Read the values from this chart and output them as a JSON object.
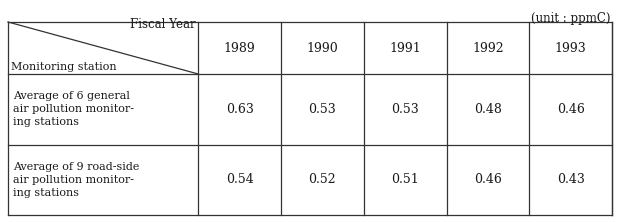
{
  "unit_label": "(unit : ppmC)",
  "header_top_left_1": "Fiscal Year",
  "header_top_left_2": "Monitoring station",
  "years": [
    "1989",
    "1990",
    "1991",
    "1992",
    "1993"
  ],
  "rows": [
    {
      "label": "Average of 6 general\nair pollution monitor-\ning stations",
      "values": [
        "0.63",
        "0.53",
        "0.53",
        "0.48",
        "0.46"
      ]
    },
    {
      "label": "Average of 9 road-side\nair pollution monitor-\ning stations",
      "values": [
        "0.54",
        "0.52",
        "0.51",
        "0.46",
        "0.43"
      ]
    }
  ],
  "bg_color": "#ffffff",
  "text_color": "#1a1a1a",
  "line_color": "#333333",
  "font_size_unit": 8.5,
  "font_size_header": 8.5,
  "font_size_year": 9,
  "font_size_data": 9,
  "font_size_label": 8.0
}
